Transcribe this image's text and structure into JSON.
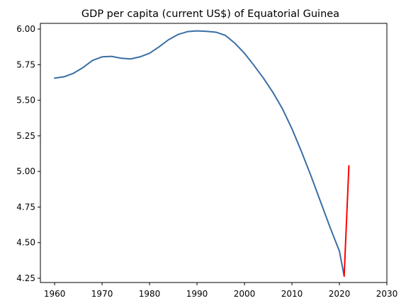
{
  "chart_data": {
    "type": "line",
    "title": "GDP per capita (current US$) of Equatorial Guinea",
    "xlabel": "",
    "ylabel": "",
    "xlim": [
      1957,
      2030
    ],
    "ylim": [
      4.22,
      6.04
    ],
    "x_ticks": [
      1960,
      1970,
      1980,
      1990,
      2000,
      2010,
      2020,
      2030
    ],
    "y_ticks": [
      4.25,
      4.5,
      4.75,
      5.0,
      5.25,
      5.5,
      5.75,
      6.0
    ],
    "y_tick_labels": [
      "4.25",
      "4.50",
      "4.75",
      "5.00",
      "5.25",
      "5.50",
      "5.75",
      "6.00"
    ],
    "grid": false,
    "legend": "none",
    "series": [
      {
        "color": "#3a6ea5",
        "points": [
          [
            1960,
            5.655
          ],
          [
            1962,
            5.665
          ],
          [
            1964,
            5.69
          ],
          [
            1966,
            5.73
          ],
          [
            1968,
            5.78
          ],
          [
            1970,
            5.805
          ],
          [
            1972,
            5.808
          ],
          [
            1974,
            5.795
          ],
          [
            1976,
            5.79
          ],
          [
            1978,
            5.805
          ],
          [
            1980,
            5.83
          ],
          [
            1982,
            5.875
          ],
          [
            1984,
            5.925
          ],
          [
            1986,
            5.962
          ],
          [
            1988,
            5.982
          ],
          [
            1990,
            5.987
          ],
          [
            1992,
            5.984
          ],
          [
            1994,
            5.978
          ],
          [
            1996,
            5.955
          ],
          [
            1998,
            5.9
          ],
          [
            2000,
            5.83
          ],
          [
            2002,
            5.745
          ],
          [
            2004,
            5.655
          ],
          [
            2006,
            5.555
          ],
          [
            2008,
            5.44
          ],
          [
            2010,
            5.3
          ],
          [
            2012,
            5.14
          ],
          [
            2014,
            4.97
          ],
          [
            2016,
            4.79
          ],
          [
            2018,
            4.61
          ],
          [
            2020,
            4.44
          ],
          [
            2021,
            4.265
          ]
        ]
      },
      {
        "color": "#ff0000",
        "points": [
          [
            2021,
            4.265
          ],
          [
            2022,
            5.04
          ]
        ]
      }
    ]
  }
}
